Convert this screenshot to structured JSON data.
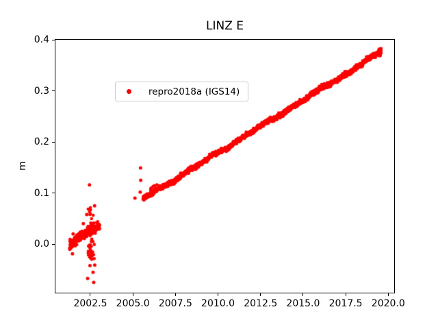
{
  "figure": {
    "background": "#ffffff"
  },
  "chart_data": {
    "type": "scatter",
    "title": "LINZ E",
    "xlabel": "",
    "ylabel": "m",
    "grid": false,
    "xlim": [
      2000.45,
      2020.35
    ],
    "ylim": [
      -0.095,
      0.4
    ],
    "xticks": [
      2002.5,
      2005.0,
      2007.5,
      2010.0,
      2012.5,
      2015.0,
      2017.5,
      2020.0
    ],
    "xtick_labels": [
      "2002.5",
      "2005.0",
      "2007.5",
      "2010.0",
      "2012.5",
      "2015.0",
      "2017.5",
      "2020.0"
    ],
    "yticks": [
      0.0,
      0.1,
      0.2,
      0.3,
      0.4
    ],
    "ytick_labels": [
      "0.0",
      "0.1",
      "0.2",
      "0.3",
      "0.4"
    ],
    "legend": {
      "position": "upper left",
      "border_color": "#cccccc",
      "entries": [
        {
          "label": "repro2018a (IGS14)",
          "color": "#ff0000",
          "marker": "circle"
        }
      ]
    },
    "series": [
      {
        "name": "repro2018a (IGS14)",
        "color": "#ff0000",
        "marker": "circle",
        "marker_radius_px": 2.3,
        "trend": {
          "x0": 2001.32,
          "y0": 0.0,
          "rate_m_per_year": 0.0206
        },
        "segments": [
          {
            "x_start": 2001.28,
            "x_end": 2003.05,
            "n": 230,
            "noise_sd": 0.0045
          },
          {
            "x_start": 2005.6,
            "x_end": 2019.55,
            "n": 2000,
            "noise_sd": 0.0023
          }
        ],
        "bursts": [
          {
            "x_center": 2002.55,
            "x_sd": 0.09,
            "n": 55,
            "y_mode": "absolute",
            "y_min": -0.03,
            "y_max": 0.076
          },
          {
            "x_center": 2002.0,
            "x_sd": 0.1,
            "n": 25,
            "y_mode": "offset",
            "y_min": -0.004,
            "y_max": 0.012
          },
          {
            "x_center": 2006.05,
            "x_sd": 0.18,
            "n": 12,
            "y_mode": "offset",
            "y_min": 0.0,
            "y_max": 0.013
          },
          {
            "x_center": 2019.5,
            "x_sd": 0.04,
            "n": 40,
            "y_mode": "offset",
            "y_min": -0.007,
            "y_max": 0.008
          }
        ],
        "outliers": [
          [
            2001.45,
            -0.019
          ],
          [
            2001.49,
            0.02
          ],
          [
            2002.09,
            0.04
          ],
          [
            2002.29,
            0.058
          ],
          [
            2002.45,
            0.116
          ],
          [
            2002.75,
            0.075
          ],
          [
            2002.48,
            -0.042
          ],
          [
            2002.76,
            -0.041
          ],
          [
            2002.66,
            -0.055
          ],
          [
            2002.34,
            -0.067
          ],
          [
            2002.7,
            -0.075
          ],
          [
            2005.12,
            0.09
          ],
          [
            2005.43,
            0.102
          ],
          [
            2005.46,
            0.125
          ],
          [
            2005.45,
            0.149
          ]
        ]
      }
    ]
  }
}
